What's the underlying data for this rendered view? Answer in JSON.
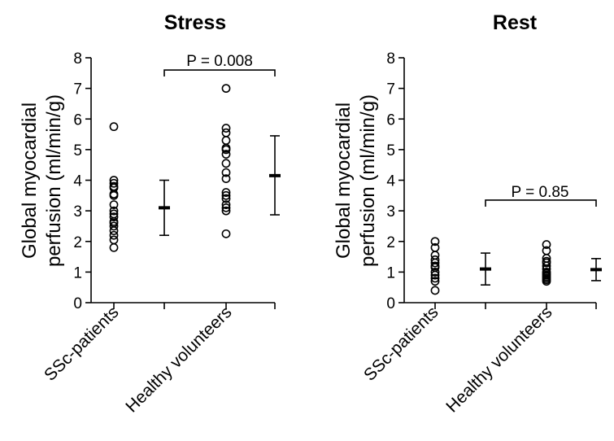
{
  "chart_data": [
    {
      "type": "scatter",
      "title": "Stress",
      "ylabel": "Global myocardial perfusion (ml/min/g)",
      "ylabel_lines": [
        "Global myocardial",
        "perfusion (ml/min/g)"
      ],
      "ylim": [
        0,
        8
      ],
      "yticks": [
        "0",
        "1",
        "2",
        "3",
        "4",
        "5",
        "6",
        "7",
        "8"
      ],
      "categories": [
        "SSc-patients",
        "Healthy volunteers"
      ],
      "series": [
        {
          "category": "SSc-patients",
          "points": [
            5.75,
            4.0,
            3.9,
            3.8,
            3.75,
            3.55,
            3.5,
            3.2,
            3.0,
            2.9,
            2.8,
            2.65,
            2.6,
            2.5,
            2.35,
            2.2,
            2.05,
            1.8
          ],
          "mean": 3.1,
          "error_low": 2.2,
          "error_high": 4.0
        },
        {
          "category": "Healthy volunteers",
          "points": [
            7.0,
            5.7,
            5.55,
            5.3,
            5.05,
            5.0,
            4.85,
            4.55,
            4.25,
            4.05,
            3.6,
            3.5,
            3.4,
            3.2,
            3.1,
            3.0,
            2.25
          ],
          "mean": 4.15,
          "error_low": 2.87,
          "error_high": 5.45
        }
      ],
      "annotation": "P = 0.008",
      "bracket_y": 7.6
    },
    {
      "type": "scatter",
      "title": "Rest",
      "ylabel": "Global myocardial perfusion (ml/min/g)",
      "ylabel_lines": [
        "Global myocardial",
        "perfusion (ml/min/g)"
      ],
      "ylim": [
        0,
        8
      ],
      "yticks": [
        "0",
        "1",
        "2",
        "3",
        "4",
        "5",
        "6",
        "7",
        "8"
      ],
      "categories": [
        "SSc-patients",
        "Healthy volunteers"
      ],
      "series": [
        {
          "category": "SSc-patients",
          "points": [
            2.0,
            1.8,
            1.55,
            1.4,
            1.3,
            1.2,
            1.15,
            1.0,
            0.9,
            0.8,
            0.7,
            0.4
          ],
          "mean": 1.1,
          "error_low": 0.58,
          "error_high": 1.62
        },
        {
          "category": "Healthy volunteers",
          "points": [
            1.9,
            1.7,
            1.45,
            1.35,
            1.3,
            1.2,
            1.1,
            1.0,
            0.95,
            0.9,
            0.85,
            0.8,
            0.75,
            0.7
          ],
          "mean": 1.08,
          "error_low": 0.72,
          "error_high": 1.44
        }
      ],
      "annotation": "P = 0.85",
      "bracket_y": 3.35
    }
  ]
}
